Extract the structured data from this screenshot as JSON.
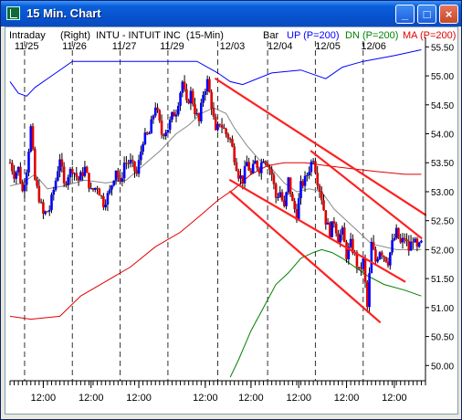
{
  "window": {
    "title": "15 Min. Chart",
    "minimize_label": "_",
    "maximize_label": "□",
    "close_label": "×"
  },
  "header": {
    "left": "Intraday",
    "title": "(Right)  INTU - INTUIT INC  (15-Min)",
    "bar": "Bar",
    "up": "UP (P=200)",
    "dn": "DN (P=200)",
    "ma": "MA (P=200)"
  },
  "colors": {
    "up": "#0000ff",
    "dn": "#007f00",
    "ma": "#e00000",
    "channel": "#ff2020",
    "candle_up": "#0000ff",
    "candle_down": "#e00000",
    "grid": "#333333"
  },
  "chart_data": {
    "type": "candlestick",
    "instrument": "INTU - INTUIT INC",
    "interval": "15-Min",
    "y_axis": {
      "position": "right",
      "min": 49.8,
      "max": 55.6,
      "ticks": [
        50.0,
        50.5,
        51.0,
        51.5,
        52.0,
        52.5,
        53.0,
        53.5,
        54.0,
        54.5,
        55.0,
        55.5
      ]
    },
    "x_axis": {
      "range": [
        0,
        200
      ],
      "date_labels": [
        {
          "x": 8,
          "label": "11/25"
        },
        {
          "x": 31,
          "label": "11/26"
        },
        {
          "x": 55,
          "label": "11/27"
        },
        {
          "x": 78,
          "label": "11/29"
        },
        {
          "x": 107,
          "label": "12/03"
        },
        {
          "x": 130,
          "label": "12/04"
        },
        {
          "x": 153,
          "label": "12/05"
        },
        {
          "x": 175,
          "label": "12/06"
        }
      ],
      "session_dividers": [
        7,
        30,
        53,
        76,
        100,
        124,
        147,
        170
      ],
      "time_ticks": [
        {
          "x": 16,
          "label": "12:00"
        },
        {
          "x": 39,
          "label": "12:00"
        },
        {
          "x": 62,
          "label": "12:00"
        },
        {
          "x": 94,
          "label": "12:00"
        },
        {
          "x": 116,
          "label": "12:00"
        },
        {
          "x": 139,
          "label": "12:00"
        },
        {
          "x": 162,
          "label": "12:00"
        },
        {
          "x": 185,
          "label": "12:00"
        }
      ]
    },
    "close_path": [
      [
        0,
        53.5
      ],
      [
        2,
        53.3
      ],
      [
        4,
        53.4
      ],
      [
        6,
        53.0
      ],
      [
        8,
        53.4
      ],
      [
        10,
        54.1
      ],
      [
        12,
        53.2
      ],
      [
        14,
        52.9
      ],
      [
        16,
        52.6
      ],
      [
        19,
        52.7
      ],
      [
        22,
        53.2
      ],
      [
        24,
        53.6
      ],
      [
        26,
        53.1
      ],
      [
        28,
        53.3
      ],
      [
        30,
        53.4
      ],
      [
        33,
        53.2
      ],
      [
        36,
        53.4
      ],
      [
        39,
        53.0
      ],
      [
        42,
        53.1
      ],
      [
        45,
        52.8
      ],
      [
        48,
        53.0
      ],
      [
        51,
        53.4
      ],
      [
        53,
        53.1
      ],
      [
        55,
        53.5
      ],
      [
        58,
        53.5
      ],
      [
        61,
        53.3
      ],
      [
        64,
        53.9
      ],
      [
        67,
        54.0
      ],
      [
        70,
        54.5
      ],
      [
        73,
        54.0
      ],
      [
        76,
        54.1
      ],
      [
        78,
        54.3
      ],
      [
        80,
        54.4
      ],
      [
        83,
        54.9
      ],
      [
        85,
        54.5
      ],
      [
        87,
        54.7
      ],
      [
        89,
        54.4
      ],
      [
        91,
        54.2
      ],
      [
        93,
        54.7
      ],
      [
        95,
        54.9
      ],
      [
        97,
        54.5
      ],
      [
        99,
        54.0
      ],
      [
        101,
        54.2
      ],
      [
        104,
        54.0
      ],
      [
        106,
        53.9
      ],
      [
        108,
        53.6
      ],
      [
        110,
        53.3
      ],
      [
        112,
        53.2
      ],
      [
        114,
        53.5
      ],
      [
        116,
        53.3
      ],
      [
        118,
        53.5
      ],
      [
        120,
        53.4
      ],
      [
        122,
        53.6
      ],
      [
        124,
        53.5
      ],
      [
        126,
        53.3
      ],
      [
        128,
        52.9
      ],
      [
        130,
        53.0
      ],
      [
        132,
        52.7
      ],
      [
        134,
        53.2
      ],
      [
        136,
        52.8
      ],
      [
        138,
        52.6
      ],
      [
        140,
        53.1
      ],
      [
        142,
        53.2
      ],
      [
        144,
        53.4
      ],
      [
        146,
        53.6
      ],
      [
        148,
        53.2
      ],
      [
        150,
        52.9
      ],
      [
        152,
        52.5
      ],
      [
        154,
        52.3
      ],
      [
        156,
        52.5
      ],
      [
        158,
        52.2
      ],
      [
        160,
        52.3
      ],
      [
        162,
        51.9
      ],
      [
        164,
        52.1
      ],
      [
        166,
        51.9
      ],
      [
        168,
        51.6
      ],
      [
        170,
        51.8
      ],
      [
        172,
        51.0
      ],
      [
        174,
        52.1
      ],
      [
        176,
        51.8
      ],
      [
        178,
        52.0
      ],
      [
        180,
        51.9
      ],
      [
        182,
        51.8
      ],
      [
        184,
        52.1
      ],
      [
        186,
        52.3
      ],
      [
        188,
        52.1
      ],
      [
        190,
        52.2
      ],
      [
        192,
        52.0
      ],
      [
        194,
        52.2
      ],
      [
        196,
        52.0
      ],
      [
        198,
        52.1
      ]
    ],
    "overlays": [
      {
        "name": "UP (P=200)",
        "color_key": "up",
        "points": [
          [
            0,
            54.9
          ],
          [
            4,
            54.7
          ],
          [
            8,
            54.65
          ],
          [
            12,
            54.8
          ],
          [
            20,
            55.0
          ],
          [
            30,
            55.25
          ],
          [
            60,
            55.25
          ],
          [
            90,
            55.25
          ],
          [
            100,
            55.05
          ],
          [
            106,
            54.9
          ],
          [
            112,
            54.85
          ],
          [
            126,
            55.05
          ],
          [
            140,
            55.1
          ],
          [
            152,
            54.95
          ],
          [
            160,
            55.15
          ],
          [
            170,
            55.25
          ],
          [
            185,
            55.35
          ],
          [
            198,
            55.45
          ]
        ]
      },
      {
        "name": "DN (P=200)",
        "color_key": "dn",
        "points": [
          [
            106,
            49.8
          ],
          [
            110,
            50.1
          ],
          [
            116,
            50.6
          ],
          [
            122,
            51.0
          ],
          [
            128,
            51.4
          ],
          [
            134,
            51.6
          ],
          [
            140,
            51.85
          ],
          [
            146,
            51.95
          ],
          [
            150,
            52.0
          ],
          [
            155,
            51.95
          ],
          [
            160,
            51.85
          ],
          [
            166,
            51.7
          ],
          [
            172,
            51.55
          ],
          [
            180,
            51.4
          ],
          [
            190,
            51.3
          ],
          [
            198,
            51.2
          ]
        ]
      },
      {
        "name": "MA (P=200)",
        "color_key": "ma",
        "points": [
          [
            0,
            50.85
          ],
          [
            10,
            50.8
          ],
          [
            24,
            50.85
          ],
          [
            34,
            51.2
          ],
          [
            46,
            51.45
          ],
          [
            58,
            51.7
          ],
          [
            70,
            52.05
          ],
          [
            82,
            52.3
          ],
          [
            92,
            52.6
          ],
          [
            100,
            52.85
          ],
          [
            108,
            53.05
          ],
          [
            116,
            53.3
          ],
          [
            124,
            53.45
          ],
          [
            132,
            53.5
          ],
          [
            142,
            53.5
          ],
          [
            152,
            53.45
          ],
          [
            164,
            53.4
          ],
          [
            176,
            53.35
          ],
          [
            190,
            53.3
          ],
          [
            198,
            53.3
          ]
        ]
      },
      {
        "name": "short MA",
        "color_key": "grid",
        "points": [
          [
            0,
            53.1
          ],
          [
            6,
            53.15
          ],
          [
            12,
            53.3
          ],
          [
            18,
            53.05
          ],
          [
            26,
            53.1
          ],
          [
            36,
            53.2
          ],
          [
            46,
            53.15
          ],
          [
            56,
            53.2
          ],
          [
            64,
            53.45
          ],
          [
            72,
            53.7
          ],
          [
            80,
            54.0
          ],
          [
            86,
            54.15
          ],
          [
            92,
            54.35
          ],
          [
            98,
            54.45
          ],
          [
            104,
            54.35
          ],
          [
            108,
            54.1
          ],
          [
            114,
            53.8
          ],
          [
            120,
            53.55
          ],
          [
            126,
            53.4
          ],
          [
            132,
            53.15
          ],
          [
            138,
            53.0
          ],
          [
            144,
            53.05
          ],
          [
            150,
            53.0
          ],
          [
            156,
            52.7
          ],
          [
            162,
            52.5
          ],
          [
            168,
            52.3
          ],
          [
            174,
            52.1
          ],
          [
            180,
            52.05
          ],
          [
            186,
            52.0
          ],
          [
            192,
            52.0
          ],
          [
            198,
            52.0
          ]
        ]
      }
    ],
    "trendlines": [
      {
        "from": [
          99,
          54.95
        ],
        "to": [
          200,
          52.6
        ]
      },
      {
        "from": [
          106,
          53.2
        ],
        "to": [
          190,
          51.45
        ]
      },
      {
        "from": [
          106,
          53.0
        ],
        "to": [
          178,
          50.75
        ]
      },
      {
        "from": [
          145,
          53.7
        ],
        "to": [
          198,
          52.2
        ]
      }
    ]
  }
}
